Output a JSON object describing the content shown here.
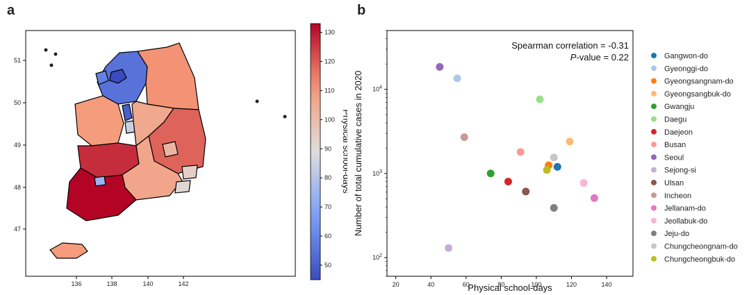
{
  "panels": {
    "a": "a",
    "b": "b"
  },
  "chart_data": [
    {
      "type": "heatmap",
      "subtype": "choropleth",
      "x_ticks": [
        "136",
        "138",
        "140",
        "142"
      ],
      "y_ticks": [
        "47",
        "48",
        "49",
        "50",
        "51"
      ],
      "colorbar": {
        "label": "Physical school-days",
        "ticks": [
          "50",
          "60",
          "70",
          "80",
          "90",
          "100",
          "110",
          "120",
          "130"
        ],
        "range": [
          45,
          133
        ],
        "colormap": "coolwarm"
      },
      "regions": [
        {
          "name": "Gangwon-do",
          "value": 112
        },
        {
          "name": "Gyeonggi-do",
          "value": 55
        },
        {
          "name": "Gyeongsangnam-do",
          "value": 107
        },
        {
          "name": "Gyeongsangbuk-do",
          "value": 119
        },
        {
          "name": "Gwangju",
          "value": 74
        },
        {
          "name": "Daegu",
          "value": 102
        },
        {
          "name": "Daejeon",
          "value": 84
        },
        {
          "name": "Busan",
          "value": 91
        },
        {
          "name": "Seoul",
          "value": 45
        },
        {
          "name": "Sejong-si",
          "value": 50
        },
        {
          "name": "Ulsan",
          "value": 94
        },
        {
          "name": "Incheon",
          "value": 59
        },
        {
          "name": "Jeollanam-do",
          "value": 133
        },
        {
          "name": "Jeollabuk-do",
          "value": 127
        },
        {
          "name": "Jeju-do",
          "value": 110
        },
        {
          "name": "Chungcheongnam-do",
          "value": 110
        },
        {
          "name": "Chungcheongbuk-do",
          "value": 106
        }
      ]
    },
    {
      "type": "scatter",
      "xlabel": "Physical school-days",
      "ylabel": "Number of total cumulative cases in 2020",
      "xlim": [
        15,
        155
      ],
      "ylim": [
        60,
        50000
      ],
      "yscale": "log",
      "x_ticks": [
        "20",
        "40",
        "60",
        "80",
        "100",
        "120",
        "140"
      ],
      "y_ticks": [
        {
          "base": "10",
          "exp": "2",
          "value": 100
        },
        {
          "base": "10",
          "exp": "3",
          "value": 1000
        },
        {
          "base": "10",
          "exp": "4",
          "value": 10000
        }
      ],
      "annotation": {
        "line1": "Spearman correlation = -0.31",
        "line2_italic": "P",
        "line2_rest": "-value = 0.22"
      },
      "legend_position": "right",
      "series": [
        {
          "name": "Gangwon-do",
          "color": "#1f77b4",
          "x": 112,
          "y": 1200
        },
        {
          "name": "Gyeonggi-do",
          "color": "#aec7e8",
          "x": 55,
          "y": 13500
        },
        {
          "name": "Gyeongsangnam-do",
          "color": "#ff7f0e",
          "x": 107,
          "y": 1250
        },
        {
          "name": "Gyeongsangbuk-do",
          "color": "#ffbb78",
          "x": 119,
          "y": 2400
        },
        {
          "name": "Gwangju",
          "color": "#2ca02c",
          "x": 74,
          "y": 1000
        },
        {
          "name": "Daegu",
          "color": "#98df8a",
          "x": 102,
          "y": 7600
        },
        {
          "name": "Daejeon",
          "color": "#d62728",
          "x": 84,
          "y": 800
        },
        {
          "name": "Busan",
          "color": "#ff9896",
          "x": 91,
          "y": 1800
        },
        {
          "name": "Seoul",
          "color": "#9467bd",
          "x": 45,
          "y": 18500
        },
        {
          "name": "Sejong-si",
          "color": "#c5b0d5",
          "x": 50,
          "y": 130
        },
        {
          "name": "Ulsan",
          "color": "#8c564b",
          "x": 94,
          "y": 610
        },
        {
          "name": "Incheon",
          "color": "#c49c94",
          "x": 59,
          "y": 2700
        },
        {
          "name": "Jellanam-do",
          "color": "#e377c2",
          "x": 133,
          "y": 510
        },
        {
          "name": "Jeollabuk-do",
          "color": "#f7b6d2",
          "x": 127,
          "y": 770
        },
        {
          "name": "Jeju-do",
          "color": "#7f7f7f",
          "x": 110,
          "y": 390
        },
        {
          "name": "Chungcheongnam-do",
          "color": "#c7c7c7",
          "x": 110,
          "y": 1550
        },
        {
          "name": "Chungcheongbuk-do",
          "color": "#bcbd22",
          "x": 106,
          "y": 1100
        }
      ]
    }
  ]
}
